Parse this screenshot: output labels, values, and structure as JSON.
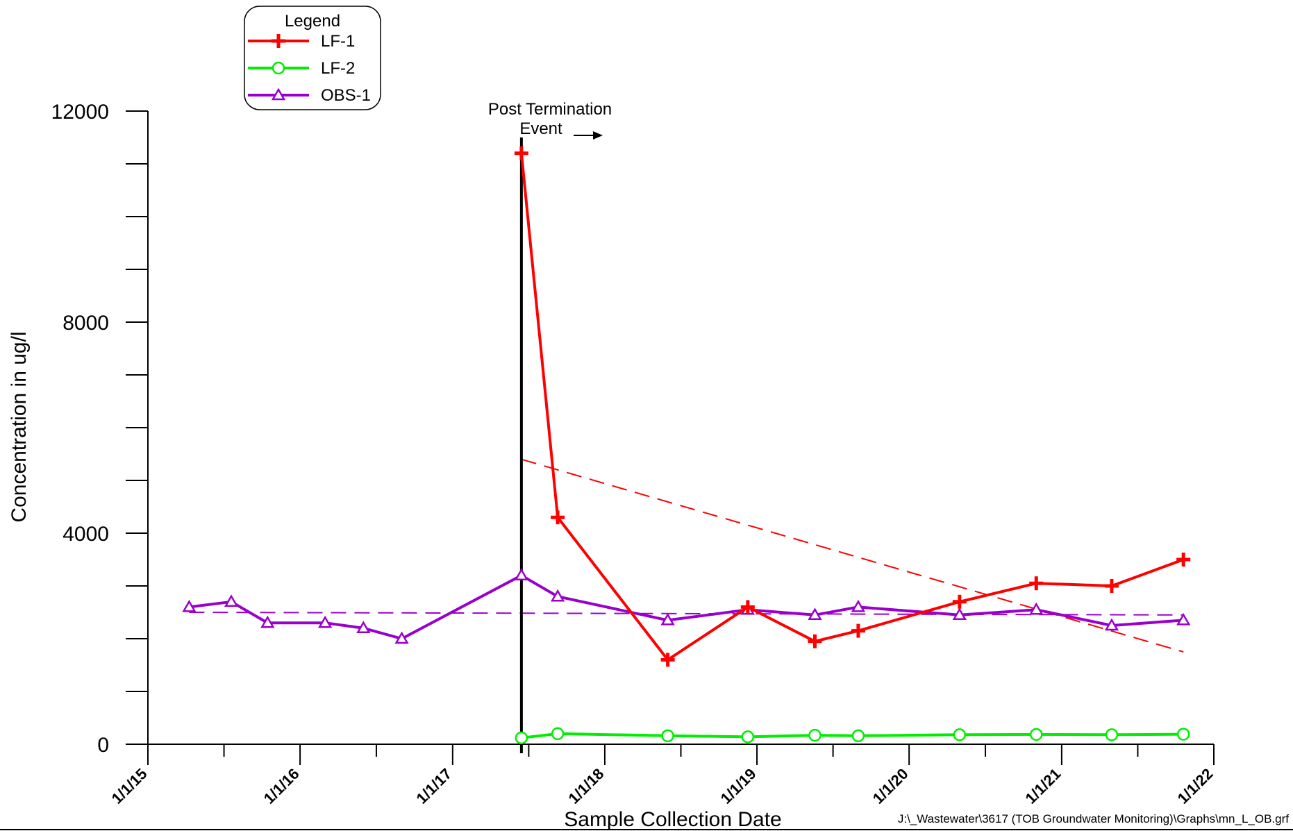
{
  "chart_data": {
    "type": "line",
    "xlabel": "Sample Collection Date",
    "ylabel": "Concentration in ug/l",
    "ylim": [
      0,
      12000
    ],
    "yticks": [
      0,
      4000,
      8000,
      12000
    ],
    "xlim": [
      "2015-01-01",
      "2022-01-01"
    ],
    "xticks": [
      {
        "label": "1/1/15",
        "date": "2015-01-01"
      },
      {
        "label": "1/1/16",
        "date": "2016-01-01"
      },
      {
        "label": "1/1/17",
        "date": "2017-01-01"
      },
      {
        "label": "1/1/18",
        "date": "2018-01-01"
      },
      {
        "label": "1/1/19",
        "date": "2019-01-01"
      },
      {
        "label": "1/1/20",
        "date": "2020-01-01"
      },
      {
        "label": "1/1/21",
        "date": "2021-01-01"
      },
      {
        "label": "1/1/22",
        "date": "2022-01-01"
      }
    ],
    "grid": false,
    "legend": {
      "title": "Legend",
      "position": "top-left"
    },
    "series": [
      {
        "name": "LF-1",
        "color": "#ff0000",
        "marker": "plus",
        "x": [
          "2017-06-15",
          "2017-09-10",
          "2018-06-01",
          "2018-12-10",
          "2019-05-20",
          "2019-09-01",
          "2020-05-01",
          "2020-11-01",
          "2021-05-01",
          "2021-10-20"
        ],
        "y": [
          11200,
          4300,
          1600,
          2600,
          1950,
          2150,
          2700,
          3050,
          3000,
          3500
        ]
      },
      {
        "name": "LF-2",
        "color": "#00ee00",
        "marker": "circle",
        "x": [
          "2017-06-15",
          "2017-09-10",
          "2018-06-01",
          "2018-12-10",
          "2019-05-20",
          "2019-09-01",
          "2020-05-01",
          "2020-11-01",
          "2021-05-01",
          "2021-10-20"
        ],
        "y": [
          120,
          200,
          160,
          140,
          170,
          160,
          180,
          185,
          180,
          190
        ]
      },
      {
        "name": "OBS-1",
        "color": "#9900cc",
        "marker": "triangle",
        "x": [
          "2015-04-10",
          "2015-07-20",
          "2015-10-15",
          "2016-03-01",
          "2016-06-01",
          "2016-09-01",
          "2017-06-15",
          "2017-09-10",
          "2018-06-01",
          "2018-12-10",
          "2019-05-20",
          "2019-09-01",
          "2020-05-01",
          "2020-11-01",
          "2021-05-01",
          "2021-10-20"
        ],
        "y": [
          2600,
          2700,
          2300,
          2300,
          2200,
          2000,
          3200,
          2800,
          2350,
          2550,
          2450,
          2600,
          2450,
          2550,
          2250,
          2350
        ]
      }
    ],
    "trendlines": [
      {
        "series": "LF-1",
        "color": "#ff0000",
        "x": [
          "2017-06-15",
          "2021-10-20"
        ],
        "y": [
          5400,
          1750
        ]
      },
      {
        "series": "OBS-1",
        "color": "#9900cc",
        "x": [
          "2015-04-10",
          "2021-10-20"
        ],
        "y": [
          2500,
          2450
        ]
      }
    ],
    "event_line": {
      "date": "2017-06-15",
      "label_line1": "Post Termination",
      "label_line2": "Event",
      "arrow": "right"
    }
  },
  "footer": {
    "path": "J:\\_Wastewater\\3617 (TOB Groundwater Monitoring)\\Graphs\\mn_L_OB.grf"
  }
}
